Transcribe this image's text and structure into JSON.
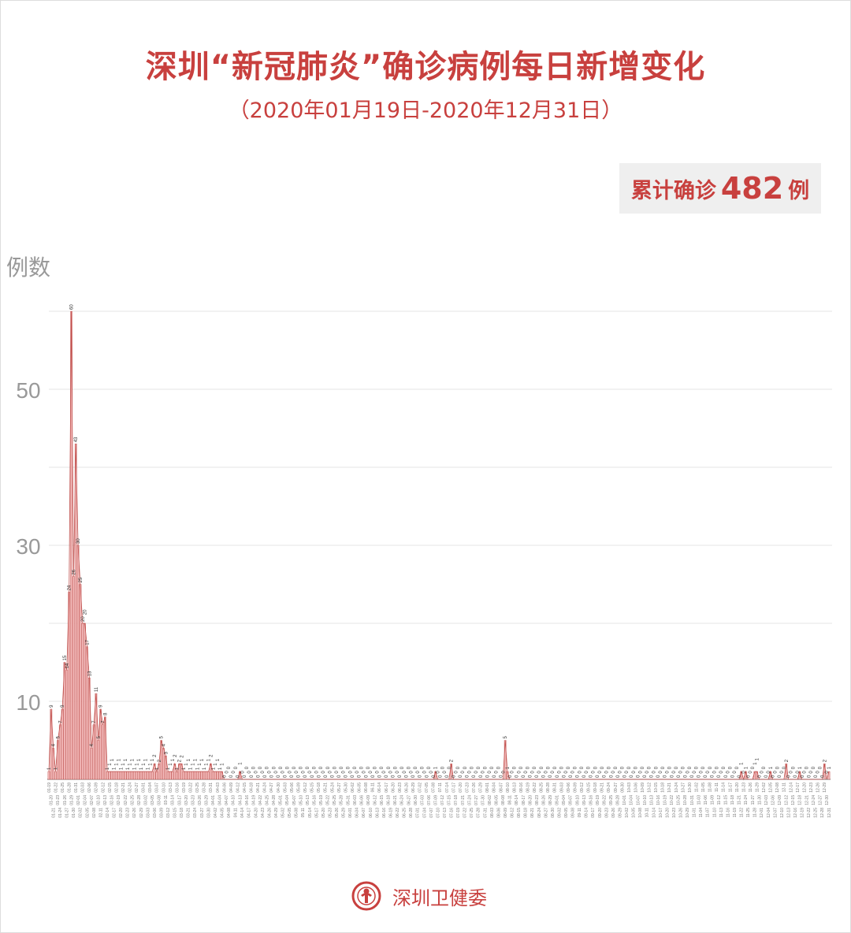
{
  "title": "深圳“新冠肺炎”确诊病例每日新增变化",
  "subtitle": "（2020年01月19日-2020年12月31日）",
  "total": {
    "label": "累计确诊",
    "value": "482",
    "unit": "例"
  },
  "footer": {
    "org": "深圳卫健委",
    "logo_icon": "health-commission-seal"
  },
  "colors": {
    "accent": "#c8403e",
    "bar_fill": "#f2b9b9",
    "bar_stroke": "#c0504d",
    "grid": "#e6e6e6",
    "axis_text": "#999999"
  },
  "chart_data": {
    "type": "bar",
    "title": "深圳“新冠肺炎”确诊病例每日新增变化",
    "ylabel": "例数",
    "xlabel": "",
    "x_start": "2020-01-19",
    "x_end": "2020-12-31",
    "ylim": [
      0,
      60
    ],
    "yticks_labeled": [
      10,
      30,
      50
    ],
    "grid_values": [
      10,
      20,
      30,
      40,
      50,
      60
    ],
    "grid": true,
    "data_labels": true,
    "values": [
      1,
      9,
      4,
      1,
      5,
      7,
      9,
      15,
      14,
      24,
      60,
      26,
      43,
      30,
      25,
      20,
      20,
      17,
      13,
      4,
      7,
      11,
      5,
      9,
      7,
      8,
      1,
      1,
      1,
      1,
      1,
      1,
      1,
      1,
      1,
      1,
      1,
      1,
      1,
      1,
      1,
      1,
      1,
      1,
      1,
      1,
      1,
      2,
      1,
      2,
      5,
      4,
      3,
      1,
      1,
      1,
      2,
      1,
      2,
      2,
      1,
      1,
      1,
      1,
      1,
      1,
      1,
      1,
      1,
      1,
      1,
      1,
      2,
      1,
      1,
      1,
      1,
      1,
      0,
      0,
      0,
      0,
      0,
      0,
      0,
      1,
      0,
      0,
      0,
      0,
      0,
      0,
      0,
      0,
      0,
      0,
      0,
      0,
      0,
      0,
      0,
      0,
      0,
      0,
      0,
      0,
      0,
      0,
      0,
      0,
      0,
      0,
      0,
      0,
      0,
      0,
      0,
      0,
      0,
      0,
      0,
      0,
      0,
      0,
      0,
      0,
      0,
      0,
      0,
      0,
      0,
      0,
      0,
      0,
      0,
      0,
      0,
      0,
      0,
      0,
      0,
      0,
      0,
      0,
      0,
      0,
      0,
      0,
      0,
      0,
      0,
      0,
      0,
      0,
      0,
      0,
      0,
      0,
      0,
      0,
      0,
      0,
      0,
      0,
      0,
      0,
      0,
      0,
      0,
      0,
      0,
      0,
      1,
      0,
      0,
      0,
      0,
      0,
      0,
      2,
      0,
      0,
      0,
      0,
      0,
      0,
      0,
      0,
      0,
      0,
      0,
      0,
      0,
      0,
      0,
      0,
      0,
      0,
      0,
      0,
      0,
      0,
      0,
      5,
      1,
      0,
      0,
      0,
      0,
      0,
      0,
      0,
      0,
      0,
      0,
      0,
      0,
      0,
      0,
      0,
      0,
      0,
      0,
      0,
      0,
      0,
      0,
      0,
      0,
      0,
      0,
      0,
      0,
      0,
      0,
      0,
      0,
      0,
      0,
      0,
      0,
      0,
      0,
      0,
      0,
      0,
      0,
      0,
      0,
      0,
      0,
      0,
      0,
      0,
      0,
      0,
      0,
      0,
      0,
      0,
      0,
      0,
      0,
      0,
      0,
      0,
      0,
      0,
      0,
      0,
      0,
      0,
      0,
      0,
      0,
      0,
      0,
      0,
      0,
      0,
      0,
      0,
      0,
      0,
      0,
      0,
      0,
      0,
      0,
      0,
      0,
      0,
      0,
      0,
      0,
      0,
      0,
      0,
      0,
      0,
      0,
      0,
      0,
      0,
      0,
      0,
      0,
      0,
      1,
      0,
      1,
      0,
      0,
      0,
      1,
      1,
      0,
      0,
      0,
      0,
      0,
      1,
      0,
      0,
      0,
      0,
      0,
      0,
      2,
      0,
      0,
      0,
      0,
      0,
      1,
      0,
      0,
      0,
      0,
      0,
      0,
      0,
      0,
      0,
      0,
      2,
      0,
      1
    ]
  }
}
